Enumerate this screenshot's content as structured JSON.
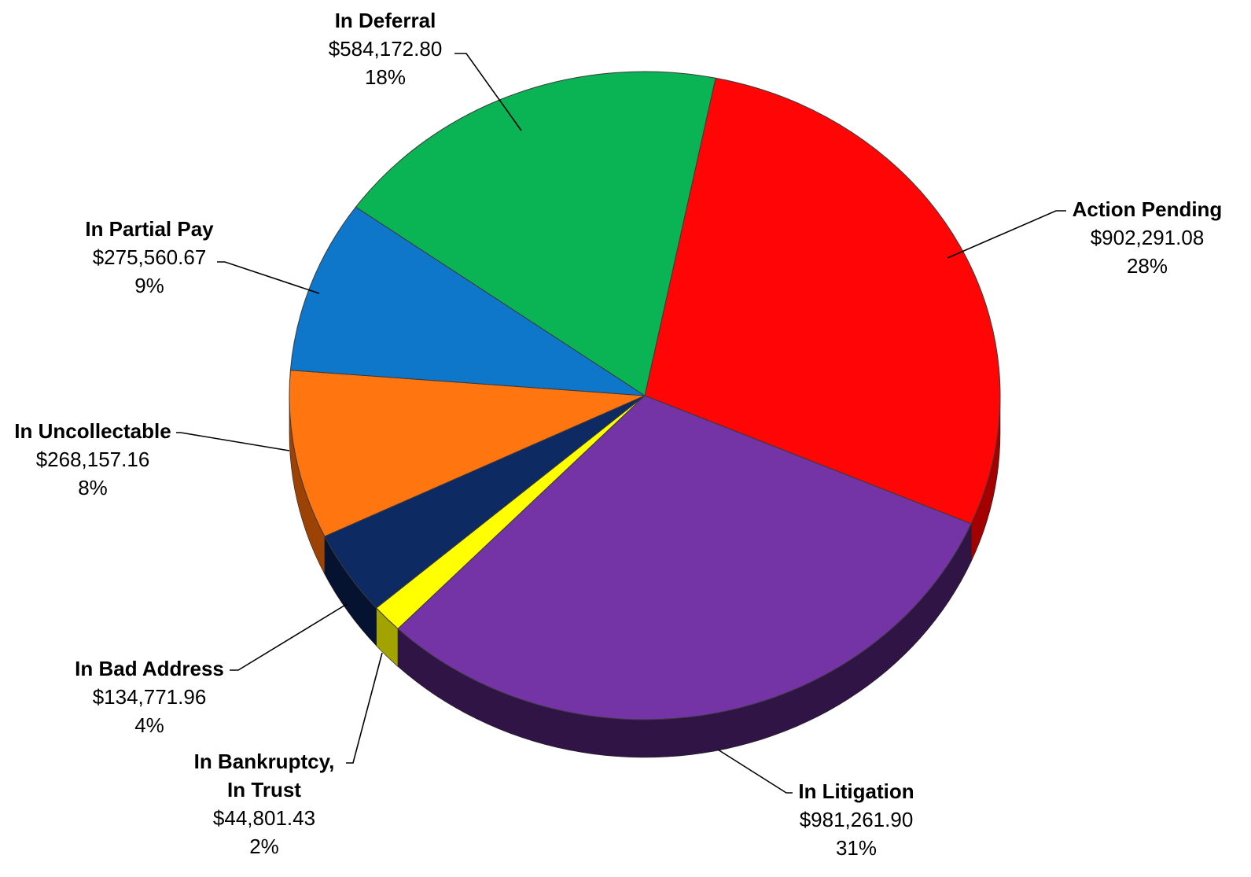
{
  "chart_data": {
    "type": "pie",
    "title": "",
    "slices": [
      {
        "name": "Action Pending",
        "label_lines": [
          "Action Pending"
        ],
        "value": 902291.08,
        "value_label": "$902,291.08",
        "percent_label": "28%",
        "color": "#ff0505",
        "side_color": "#a30000"
      },
      {
        "name": "In Litigation",
        "label_lines": [
          "In Litigation"
        ],
        "value": 981261.9,
        "value_label": "$981,261.90",
        "percent_label": "31%",
        "color": "#7434a6",
        "side_color": "#2f1445"
      },
      {
        "name": "In Bankruptcy, In Trust",
        "label_lines": [
          "In Bankruptcy,",
          "In Trust"
        ],
        "value": 44801.43,
        "value_label": "$44,801.43",
        "percent_label": "2%",
        "color": "#ffff00",
        "side_color": "#a3a300"
      },
      {
        "name": "In Bad Address",
        "label_lines": [
          "In Bad Address"
        ],
        "value": 134771.96,
        "value_label": "$134,771.96",
        "percent_label": "4%",
        "color": "#0e2a63",
        "side_color": "#061330"
      },
      {
        "name": "In Uncollectable",
        "label_lines": [
          "In Uncollectable"
        ],
        "value": 268157.16,
        "value_label": "$268,157.16",
        "percent_label": "8%",
        "color": "#ff7510",
        "side_color": "#9c4205"
      },
      {
        "name": "In Partial Pay",
        "label_lines": [
          "In Partial Pay"
        ],
        "value": 275560.67,
        "value_label": "$275,560.67",
        "percent_label": "9%",
        "color": "#0e77c9",
        "side_color": "#064577"
      },
      {
        "name": "In Deferral",
        "label_lines": [
          "In Deferral"
        ],
        "value": 584172.8,
        "value_label": "$584,172.80",
        "percent_label": "18%",
        "color": "#0ab354",
        "side_color": "#05672f"
      }
    ]
  }
}
